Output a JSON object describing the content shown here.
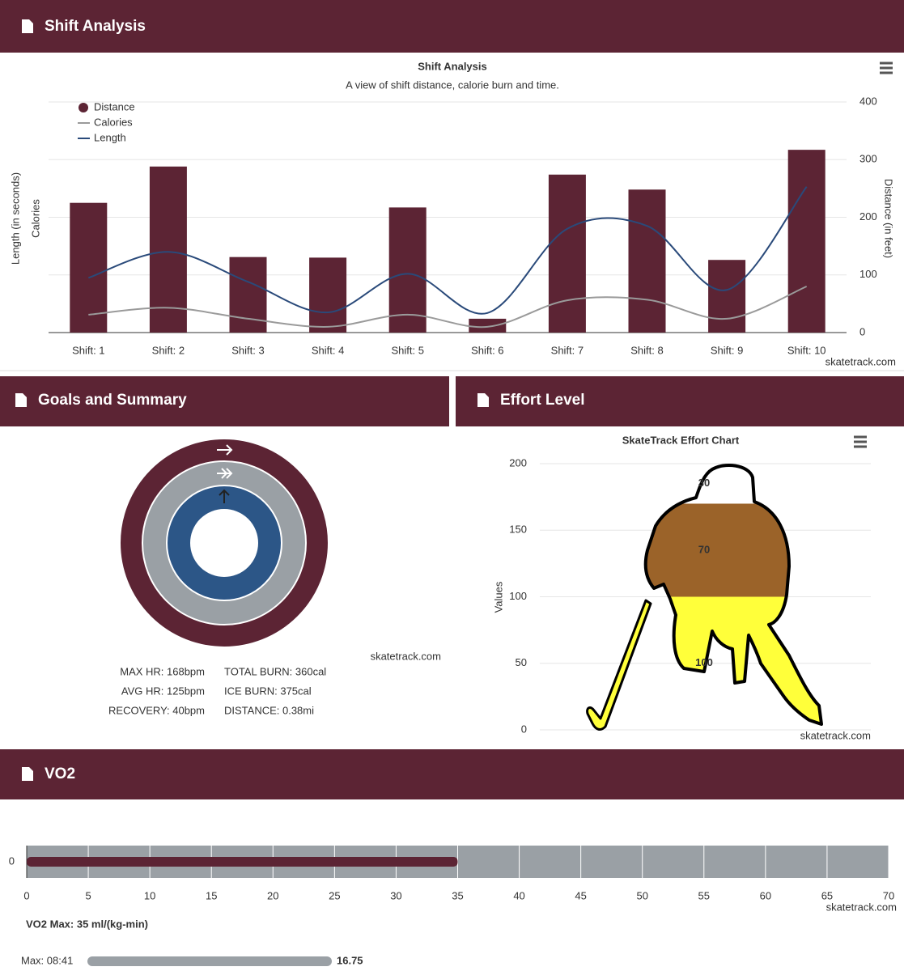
{
  "headers": [
    "Shift Analysis",
    "Goals and Summary",
    "Effort Level",
    "VO2"
  ],
  "summary": [
    [
      "MAX HR: 168bpm",
      "TOTAL BURN: 360cal"
    ],
    [
      "AVG HR: 125bpm",
      "ICE BURN: 375cal"
    ],
    [
      "RECOVERY: 40bpm",
      "DISTANCE: 0.38mi"
    ]
  ],
  "progress": {
    "label": "Max: 08:41",
    "value": 16.75,
    "color": "#9aa0a5"
  },
  "chart_data": [
    {
      "type": "combo",
      "title": "Shift Analysis",
      "subtitle": "A view of shift distance, calorie burn and time.",
      "categories": [
        "Shift: 1",
        "Shift: 2",
        "Shift: 3",
        "Shift: 4",
        "Shift: 5",
        "Shift: 6",
        "Shift: 7",
        "Shift: 8",
        "Shift: 9",
        "Shift: 10"
      ],
      "y_labels": [
        "Length (in seconds)",
        "Calories"
      ],
      "y2_label": "Distance (in feet)",
      "ylim": [
        0,
        400
      ],
      "y2lim": [
        0,
        400
      ],
      "y2ticks": [
        0,
        100,
        200,
        300,
        400
      ],
      "grid": true,
      "legend": "top-left",
      "credit": "skatetrack.com",
      "series": [
        {
          "name": "Distance",
          "type": "bar",
          "axis": "y2",
          "color": "#5c2434",
          "values": [
            225,
            288,
            131,
            130,
            217,
            24,
            274,
            248,
            126,
            317
          ]
        },
        {
          "name": "Calories",
          "type": "spline",
          "color": "#9a9a9a",
          "values": [
            31,
            43,
            24,
            10,
            31,
            10,
            56,
            57,
            24,
            80
          ]
        },
        {
          "name": "Length",
          "type": "spline",
          "color": "#2a4a7a",
          "values": [
            95,
            140,
            88,
            35,
            102,
            34,
            180,
            185,
            74,
            253
          ]
        }
      ]
    },
    {
      "type": "rings",
      "ylim": [
        0,
        100
      ],
      "values": [
        100,
        100,
        100
      ],
      "colors": [
        "#5c2434",
        "#9aa0a5",
        "#2c5687"
      ],
      "credit": "skatetrack.com"
    },
    {
      "type": "pictorial",
      "title": "SkateTrack Effort Chart",
      "y_label": "Values",
      "ylim": [
        0,
        200
      ],
      "yticks": [
        0,
        50,
        100,
        150,
        200
      ],
      "values": [
        100,
        70,
        30
      ],
      "colors": [
        "#ffff3a",
        "#9b6329",
        "#ffffff"
      ],
      "credit": "skatetrack.com"
    },
    {
      "type": "bar-horizontal",
      "title": "VO2 Max: 35 ml/(kg-min)",
      "categories": [
        "0"
      ],
      "values": [
        35
      ],
      "color": "#5c2434",
      "xlim": [
        0,
        70
      ],
      "xticks": [
        0,
        5,
        10,
        15,
        20,
        25,
        30,
        35,
        40,
        45,
        50,
        55,
        60,
        65,
        70
      ],
      "grid": true,
      "plot_background": "#9aa0a5",
      "credit": "skatetrack.com"
    }
  ]
}
